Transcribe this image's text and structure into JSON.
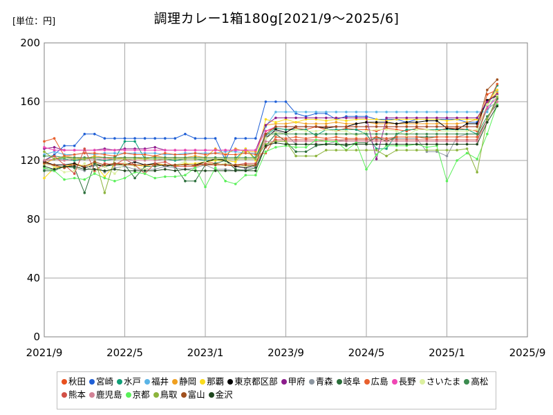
{
  "unit_label": "[単位：円]",
  "chart_data": {
    "type": "line",
    "title": "調理カレー1箱180g[2021/9～2025/6]",
    "xlabel": "",
    "ylabel": "",
    "ylim": [
      0,
      200
    ],
    "yticks": [
      0,
      40,
      80,
      120,
      160,
      200
    ],
    "xlim": [
      "2021/9",
      "2025/9"
    ],
    "xticks": [
      "2021/9",
      "2022/5",
      "2023/1",
      "2023/9",
      "2024/5",
      "2025/1",
      "2025/9"
    ],
    "grid": true,
    "legend_position": "bottom",
    "x": [
      "2021/9",
      "2021/10",
      "2021/11",
      "2021/12",
      "2022/1",
      "2022/2",
      "2022/3",
      "2022/4",
      "2022/5",
      "2022/6",
      "2022/7",
      "2022/8",
      "2022/9",
      "2022/10",
      "2022/11",
      "2022/12",
      "2023/1",
      "2023/2",
      "2023/3",
      "2023/4",
      "2023/5",
      "2023/6",
      "2023/7",
      "2023/8",
      "2023/9",
      "2023/10",
      "2023/11",
      "2023/12",
      "2024/1",
      "2024/2",
      "2024/3",
      "2024/4",
      "2024/5",
      "2024/6",
      "2024/7",
      "2024/8",
      "2024/9",
      "2024/10",
      "2024/11",
      "2024/12",
      "2025/1",
      "2025/2",
      "2025/3",
      "2025/4",
      "2025/5",
      "2025/6"
    ],
    "series": [
      {
        "name": "秋田",
        "color": "#e8501e",
        "values": [
          120,
          116,
          115,
          118,
          116,
          118,
          116,
          118,
          118,
          117,
          116,
          118,
          117,
          116,
          118,
          116,
          119,
          118,
          117,
          116,
          117,
          116,
          140,
          142,
          141,
          142,
          141,
          143,
          141,
          140,
          142,
          141,
          141,
          140,
          142,
          141,
          140,
          142,
          141,
          140,
          142,
          142,
          141,
          140,
          165,
          168
        ]
      },
      {
        "name": "宮崎",
        "color": "#1f5fd6",
        "values": [
          120,
          124,
          130,
          130,
          138,
          138,
          135,
          135,
          135,
          135,
          135,
          135,
          135,
          135,
          138,
          135,
          135,
          135,
          120,
          135,
          135,
          135,
          160,
          160,
          160,
          152,
          150,
          152,
          152,
          148,
          150,
          150,
          150,
          148,
          148,
          148,
          146,
          148,
          148,
          148,
          148,
          148,
          146,
          146,
          160,
          165
        ]
      },
      {
        "name": "水戸",
        "color": "#10a078",
        "values": [
          120,
          121,
          121,
          120,
          121,
          121,
          120,
          121,
          133,
          133,
          121,
          121,
          121,
          120,
          121,
          121,
          120,
          120,
          121,
          121,
          128,
          121,
          137,
          142,
          141,
          141,
          141,
          137,
          141,
          141,
          141,
          141,
          138,
          128,
          128,
          138,
          141,
          141,
          141,
          141,
          141,
          141,
          141,
          138,
          157,
          171
        ]
      },
      {
        "name": "福井",
        "color": "#5ab4e6",
        "values": [
          124,
          126,
          124,
          124,
          125,
          124,
          125,
          125,
          125,
          125,
          125,
          125,
          124,
          124,
          125,
          125,
          125,
          125,
          126,
          126,
          125,
          125,
          143,
          153,
          153,
          153,
          153,
          153,
          153,
          153,
          153,
          153,
          153,
          153,
          153,
          153,
          153,
          153,
          153,
          153,
          153,
          153,
          153,
          153,
          153,
          167
        ]
      },
      {
        "name": "静岡",
        "color": "#f0a020",
        "values": [
          118,
          121,
          123,
          122,
          121,
          123,
          122,
          121,
          122,
          122,
          121,
          123,
          122,
          122,
          122,
          123,
          122,
          128,
          124,
          128,
          126,
          126,
          144,
          145,
          145,
          146,
          145,
          145,
          145,
          146,
          145,
          145,
          146,
          145,
          145,
          145,
          145,
          145,
          145,
          145,
          145,
          145,
          146,
          148,
          160,
          166
        ]
      },
      {
        "name": "那覇",
        "color": "#fadc1e",
        "values": [
          108,
          115,
          116,
          118,
          116,
          118,
          109,
          117,
          117,
          117,
          116,
          118,
          117,
          116,
          118,
          118,
          119,
          120,
          120,
          119,
          128,
          120,
          148,
          146,
          148,
          146,
          148,
          148,
          147,
          148,
          147,
          148,
          148,
          148,
          147,
          148,
          148,
          148,
          148,
          148,
          147,
          148,
          148,
          148,
          160,
          168
        ]
      },
      {
        "name": "東京都区部",
        "color": "#000000",
        "values": [
          119,
          117,
          117,
          118,
          115,
          117,
          116,
          118,
          117,
          119,
          117,
          118,
          116,
          117,
          117,
          117,
          119,
          121,
          120,
          116,
          115,
          117,
          135,
          141,
          139,
          143,
          143,
          143,
          142,
          143,
          143,
          145,
          146,
          146,
          146,
          145,
          146,
          146,
          147,
          147,
          142,
          141,
          145,
          145,
          161,
          164
        ]
      },
      {
        "name": "甲府",
        "color": "#8c1c8c",
        "values": [
          128,
          129,
          127,
          127,
          127,
          127,
          128,
          127,
          128,
          128,
          128,
          129,
          127,
          127,
          127,
          127,
          127,
          127,
          127,
          127,
          127,
          127,
          144,
          149,
          149,
          149,
          149,
          149,
          149,
          149,
          149,
          149,
          149,
          121,
          149,
          149,
          149,
          149,
          149,
          149,
          149,
          149,
          149,
          149,
          160,
          165
        ]
      },
      {
        "name": "青森",
        "color": "#8c96a0",
        "values": [
          114,
          114,
          116,
          115,
          113,
          117,
          112,
          115,
          116,
          114,
          114,
          114,
          116,
          115,
          114,
          115,
          117,
          114,
          114,
          113,
          114,
          116,
          136,
          140,
          138,
          131,
          131,
          131,
          131,
          133,
          134,
          134,
          134,
          135,
          135,
          135,
          135,
          135,
          126,
          126,
          123,
          136,
          138,
          138,
          155,
          160
        ]
      },
      {
        "name": "岐阜",
        "color": "#2a6e3a",
        "values": [
          113,
          113,
          116,
          115,
          98,
          118,
          116,
          117,
          117,
          108,
          116,
          116,
          117,
          116,
          106,
          106,
          117,
          118,
          120,
          114,
          113,
          115,
          130,
          138,
          133,
          126,
          126,
          130,
          131,
          131,
          130,
          132,
          132,
          136,
          133,
          136,
          136,
          136,
          136,
          136,
          136,
          136,
          136,
          136,
          148,
          162
        ]
      },
      {
        "name": "広島",
        "color": "#e8602e",
        "values": [
          133,
          135,
          123,
          124,
          125,
          125,
          124,
          123,
          125,
          124,
          124,
          123,
          125,
          124,
          124,
          125,
          124,
          125,
          124,
          124,
          125,
          124,
          125,
          136,
          135,
          136,
          135,
          136,
          135,
          136,
          135,
          135,
          135,
          136,
          135,
          136,
          136,
          136,
          135,
          136,
          136,
          136,
          136,
          136,
          158,
          172
        ]
      },
      {
        "name": "長野",
        "color": "#f046b4",
        "values": [
          129,
          127,
          127,
          127,
          127,
          127,
          127,
          127,
          127,
          127,
          127,
          127,
          127,
          127,
          127,
          127,
          127,
          127,
          127,
          127,
          127,
          127,
          140,
          143,
          143,
          143,
          143,
          143,
          143,
          143,
          143,
          143,
          143,
          143,
          143,
          143,
          143,
          143,
          143,
          143,
          143,
          143,
          143,
          143,
          156,
          163
        ]
      },
      {
        "name": "さいたま",
        "color": "#dcf0a0",
        "values": [
          117,
          116,
          112,
          113,
          118,
          112,
          116,
          111,
          118,
          116,
          114,
          117,
          117,
          117,
          119,
          115,
          119,
          117,
          118,
          117,
          116,
          117,
          135,
          139,
          138,
          141,
          140,
          140,
          141,
          140,
          140,
          137,
          140,
          141,
          141,
          140,
          137,
          141,
          141,
          140,
          140,
          140,
          140,
          141,
          158,
          164
        ]
      },
      {
        "name": "高松",
        "color": "#3c8c50",
        "values": [
          123,
          123,
          122,
          122,
          122,
          122,
          122,
          122,
          122,
          122,
          122,
          122,
          122,
          122,
          122,
          122,
          122,
          122,
          122,
          122,
          122,
          122,
          138,
          138,
          138,
          138,
          138,
          138,
          138,
          138,
          138,
          138,
          138,
          138,
          138,
          138,
          138,
          138,
          138,
          138,
          138,
          138,
          138,
          138,
          150,
          158
        ]
      },
      {
        "name": "熊本",
        "color": "#d25046",
        "values": [
          120,
          123,
          117,
          111,
          128,
          113,
          118,
          117,
          121,
          117,
          111,
          118,
          119,
          116,
          116,
          116,
          118,
          117,
          117,
          117,
          118,
          118,
          129,
          134,
          134,
          134,
          134,
          134,
          134,
          134,
          134,
          134,
          134,
          134,
          134,
          134,
          134,
          134,
          134,
          134,
          134,
          134,
          134,
          134,
          148,
          160
        ]
      },
      {
        "name": "鹿児島",
        "color": "#d28296",
        "values": [
          120,
          121,
          120,
          121,
          121,
          121,
          121,
          121,
          121,
          120,
          120,
          120,
          121,
          121,
          121,
          121,
          121,
          121,
          121,
          121,
          121,
          121,
          133,
          133,
          133,
          133,
          133,
          133,
          133,
          133,
          133,
          133,
          133,
          133,
          133,
          133,
          133,
          133,
          133,
          133,
          133,
          133,
          133,
          133,
          148,
          160
        ]
      },
      {
        "name": "京都",
        "color": "#5af05a",
        "values": [
          115,
          113,
          107,
          108,
          107,
          111,
          108,
          106,
          108,
          112,
          111,
          108,
          109,
          109,
          110,
          115,
          102,
          115,
          106,
          104,
          110,
          110,
          126,
          129,
          130,
          129,
          129,
          134,
          133,
          133,
          127,
          132,
          114,
          124,
          130,
          130,
          130,
          131,
          129,
          130,
          106,
          120,
          125,
          121,
          138,
          158
        ]
      },
      {
        "name": "鳥取",
        "color": "#8cb43c",
        "values": [
          126,
          121,
          122,
          121,
          121,
          122,
          98,
          121,
          121,
          121,
          121,
          121,
          121,
          121,
          121,
          121,
          121,
          121,
          121,
          121,
          121,
          121,
          131,
          133,
          133,
          123,
          123,
          123,
          127,
          127,
          127,
          127,
          127,
          127,
          123,
          127,
          127,
          127,
          127,
          127,
          127,
          127,
          128,
          112,
          148,
          163
        ]
      },
      {
        "name": "富山",
        "color": "#a0501e",
        "values": [
          118,
          117,
          115,
          117,
          116,
          119,
          117,
          118,
          117,
          117,
          117,
          117,
          117,
          117,
          117,
          117,
          117,
          117,
          117,
          117,
          117,
          117,
          138,
          143,
          143,
          143,
          143,
          143,
          143,
          143,
          143,
          143,
          143,
          143,
          143,
          143,
          143,
          143,
          143,
          143,
          143,
          143,
          143,
          143,
          168,
          175
        ]
      },
      {
        "name": "金沢",
        "color": "#1e461e",
        "values": [
          116,
          114,
          116,
          116,
          114,
          114,
          113,
          114,
          113,
          113,
          113,
          113,
          114,
          113,
          114,
          113,
          113,
          113,
          113,
          113,
          113,
          113,
          130,
          132,
          131,
          131,
          131,
          131,
          131,
          131,
          131,
          131,
          131,
          131,
          131,
          131,
          131,
          131,
          131,
          131,
          131,
          131,
          131,
          131,
          146,
          157
        ]
      }
    ]
  }
}
